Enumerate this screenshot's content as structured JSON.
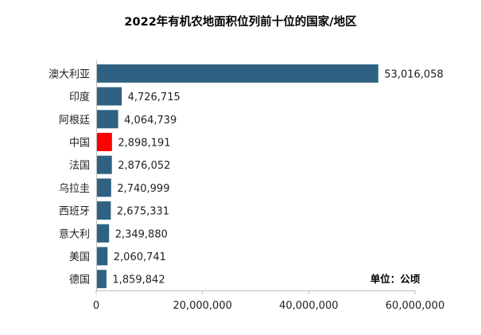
{
  "chart_data": {
    "type": "bar",
    "orientation": "horizontal",
    "title": "2022年有机农地面积位列前十位的国家/地区",
    "categories": [
      "澳大利亚",
      "印度",
      "阿根廷",
      "中国",
      "法国",
      "乌拉圭",
      "西班牙",
      "意大利",
      "美国",
      "德国"
    ],
    "values": [
      53016058,
      4726715,
      4064739,
      2898191,
      2876052,
      2740999,
      2675331,
      2349880,
      2060741,
      1859842
    ],
    "value_labels": [
      "53,016,058",
      "4,726,715",
      "4,064,739",
      "2,898,191",
      "2,876,052",
      "2,740,999",
      "2,675,331",
      "2,349,880",
      "2,060,741",
      "1,859,842"
    ],
    "highlight_category": "中国",
    "colors": {
      "bar": "#2f6282",
      "highlight": "#ff0000",
      "axis": "#bfbfbf"
    },
    "xlim": [
      0,
      60000000
    ],
    "x_ticks": [
      0,
      20000000,
      40000000,
      60000000
    ],
    "x_tick_labels": [
      "0",
      "20,000,000",
      "40,000,000",
      "60,000,000"
    ],
    "unit_note": "单位：公顷",
    "grid": false,
    "legend": "none"
  }
}
